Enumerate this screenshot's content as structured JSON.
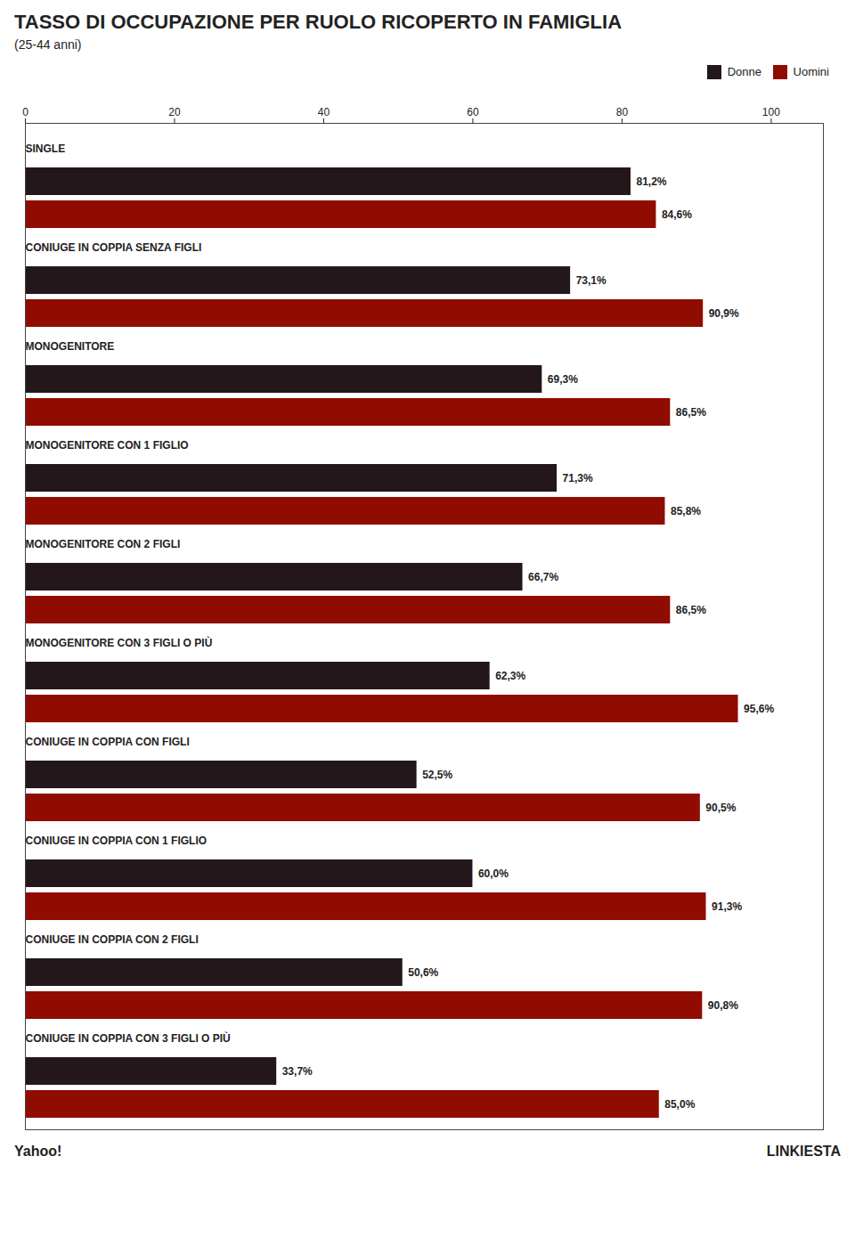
{
  "chart_data": {
    "type": "bar",
    "orientation": "horizontal",
    "title": "TASSO DI OCCUPAZIONE PER RUOLO RICOPERTO IN FAMIGLIA",
    "subtitle": "(25-44 anni)",
    "categories": [
      "SINGLE",
      "CONIUGE IN COPPIA SENZA FIGLI",
      "MONOGENITORE",
      "MONOGENITORE CON 1 FIGLIO",
      "MONOGENITORE CON 2 FIGLI",
      "MONOGENITORE CON 3 FIGLI O PIÙ",
      "CONIUGE IN COPPIA CON FIGLI",
      "CONIUGE IN COPPIA CON 1 FIGLIO",
      "CONIUGE IN COPPIA CON 2 FIGLI",
      "CONIUGE IN COPPIA CON 3 FIGLI O PIÙ"
    ],
    "series": [
      {
        "name": "Donne",
        "values": [
          81.2,
          73.1,
          69.3,
          71.3,
          66.7,
          62.3,
          52.5,
          60.0,
          50.6,
          33.7
        ],
        "value_labels": [
          "81,2%",
          "73,1%",
          "69,3%",
          "71,3%",
          "66,7%",
          "62,3%",
          "52,5%",
          "60,0%",
          "50,6%",
          "33,7%"
        ]
      },
      {
        "name": "Uomini",
        "values": [
          84.6,
          90.9,
          86.5,
          85.8,
          86.5,
          95.6,
          90.5,
          91.3,
          90.8,
          85.0
        ],
        "value_labels": [
          "84,6%",
          "90,9%",
          "86,5%",
          "85,8%",
          "86,5%",
          "95,6%",
          "90,5%",
          "91,3%",
          "90,8%",
          "85,0%"
        ]
      }
    ],
    "xlim": [
      0,
      107
    ],
    "xticks": [
      0,
      20,
      40,
      60,
      80,
      100
    ],
    "data_labels": true,
    "grid": false,
    "legend": "top-right",
    "annotations": [
      "Yahoo!",
      "LINKIESTA"
    ]
  }
}
